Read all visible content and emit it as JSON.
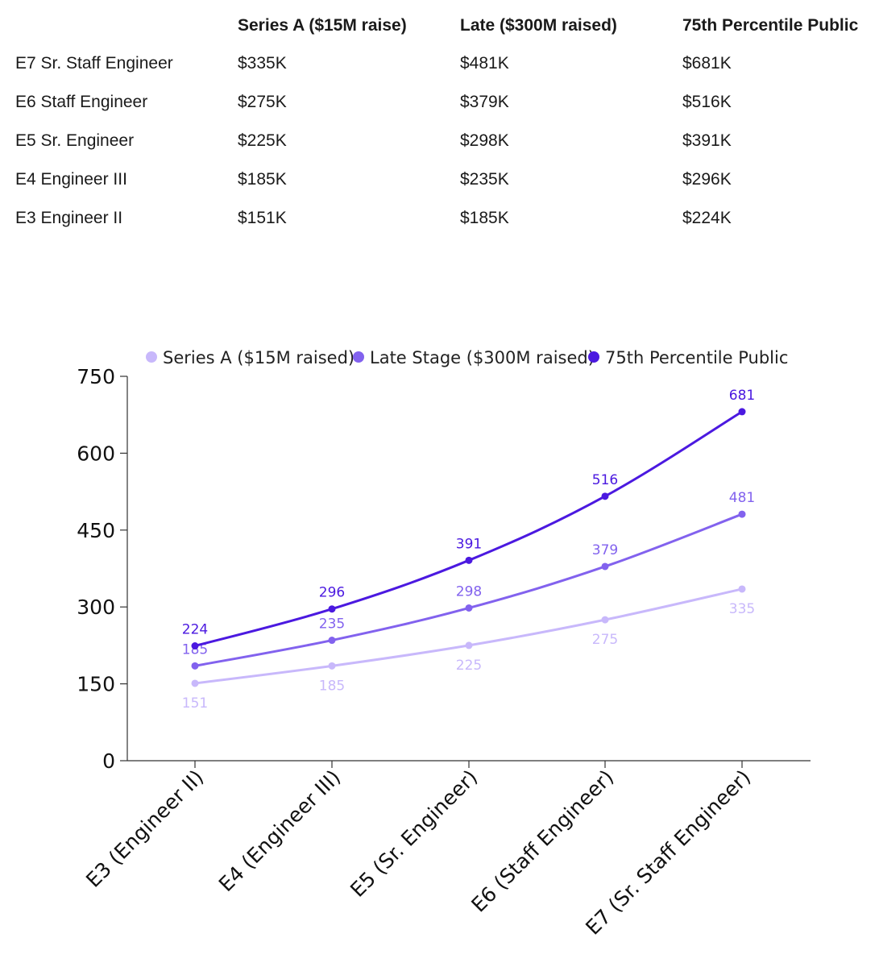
{
  "table": {
    "columns": [
      "",
      "Series A ($15M raise)",
      "Late ($300M raised)",
      "75th Percentile Public"
    ],
    "rows": [
      [
        "E7 Sr. Staff Engineer",
        "$335K",
        "$481K",
        "$681K"
      ],
      [
        "E6 Staff Engineer",
        "$275K",
        "$379K",
        "$516K"
      ],
      [
        "E5 Sr. Engineer",
        "$225K",
        "$298K",
        "$391K"
      ],
      [
        "E4 Engineer III",
        "$185K",
        "$235K",
        "$296K"
      ],
      [
        "E3 Engineer II",
        "$151K",
        "$185K",
        "$224K"
      ]
    ]
  },
  "chart_data": {
    "type": "line",
    "categories": [
      "E3 (Engineer II)",
      "E4 (Engineer III)",
      "E5 (Sr. Engineer)",
      "E6 (Staff Engineer)",
      "E7 (Sr. Staff Engineer)"
    ],
    "series": [
      {
        "name": "Series A ($15M raised)",
        "values": [
          151,
          185,
          225,
          275,
          335
        ],
        "color": "#c8b8fb"
      },
      {
        "name": "Late Stage ($300M raised)",
        "values": [
          185,
          235,
          298,
          379,
          481
        ],
        "color": "#8262ee"
      },
      {
        "name": "75th Percentile Public",
        "values": [
          224,
          296,
          391,
          516,
          681
        ],
        "color": "#4b19e0"
      }
    ],
    "yticks": [
      0,
      150,
      300,
      450,
      600,
      750
    ],
    "ylim": [
      0,
      750
    ],
    "legend": "top",
    "grid": false,
    "data_labels": true
  }
}
